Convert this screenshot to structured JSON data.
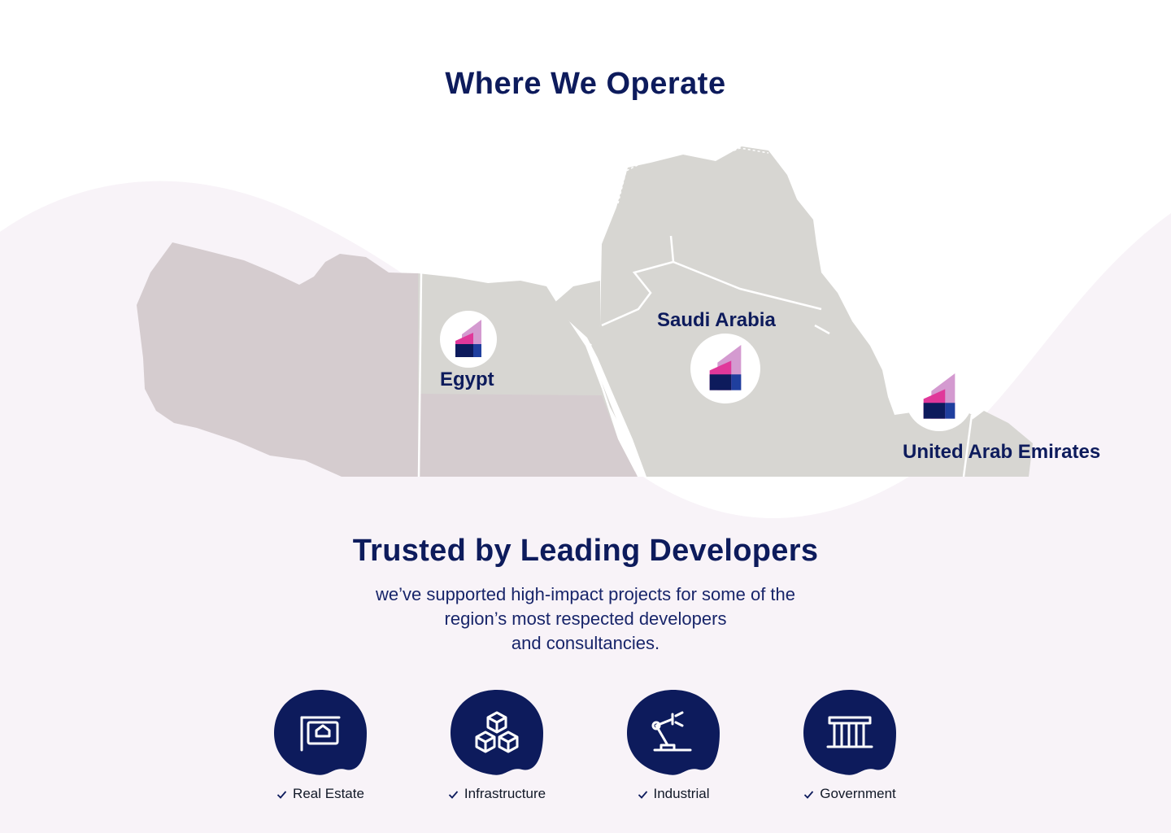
{
  "colors": {
    "navy": "#0d1b5c",
    "wave_background": "#f8f3f8",
    "land_gray": "#d7d6d2",
    "land_mauve": "#d5cccf",
    "logo_pink": "#e0389a",
    "logo_light": "#d49ad0"
  },
  "section_map": {
    "title": "Where We Operate",
    "markers": [
      {
        "country": "Egypt",
        "icon": "company-logo-icon"
      },
      {
        "country": "Saudi Arabia",
        "icon": "company-logo-icon"
      },
      {
        "country": "United Arab Emirates",
        "icon": "company-logo-icon"
      }
    ]
  },
  "section_trust": {
    "title": "Trusted by Leading Developers",
    "description_lines": [
      "we’ve supported high-impact projects for some of the",
      "region’s most respected developers",
      "and consultancies."
    ],
    "sectors": [
      {
        "label": "Real Estate",
        "icon": "property-sign-icon"
      },
      {
        "label": "Infrastructure",
        "icon": "cubes-icon"
      },
      {
        "label": "Industrial",
        "icon": "robot-arm-icon"
      },
      {
        "label": "Government",
        "icon": "government-building-icon"
      }
    ]
  }
}
